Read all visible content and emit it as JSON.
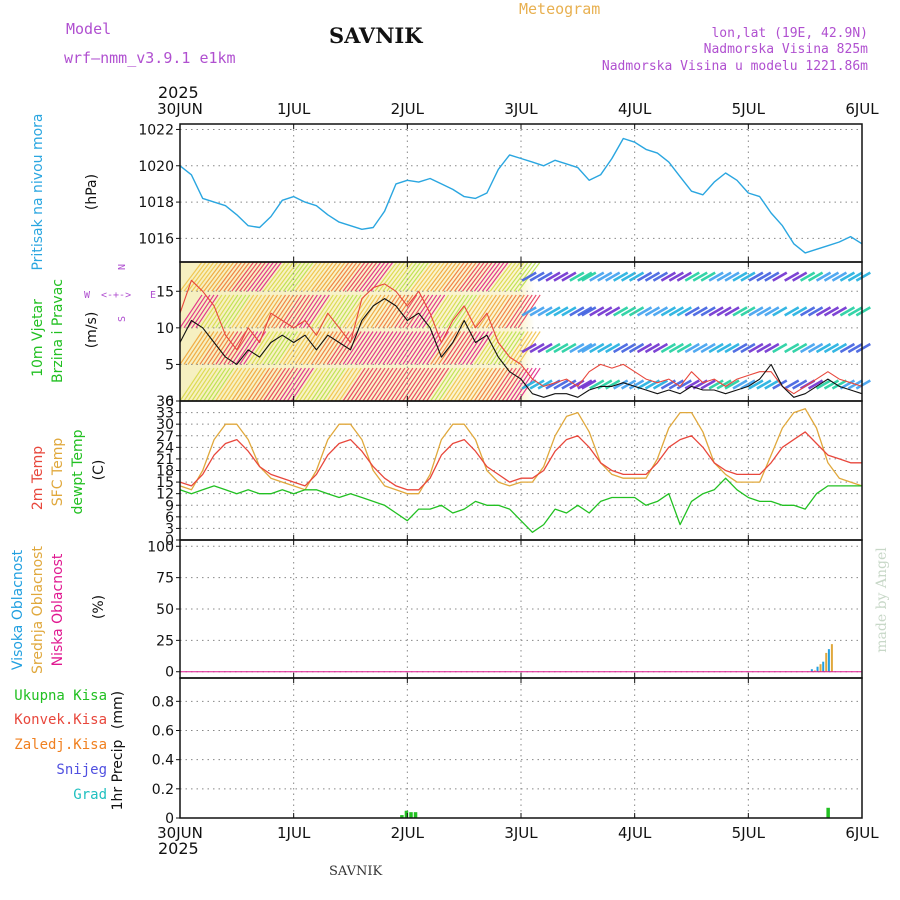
{
  "header": {
    "model_label": "Model",
    "model_name": "wrf—nmm_v3.9.1  e1km",
    "station": "SAVNIK",
    "title": "Meteogram",
    "lonlat": "lon,lat (19E, 42.9N)",
    "elevation": "Nadmorska Visina 825m",
    "model_elevation": "Nadmorska Visina u modelu 1221.86m"
  },
  "footer": {
    "station": "SAVNIK",
    "credit": "made by Angel"
  },
  "time_axis": {
    "year": "2025",
    "labels": [
      "30JUN",
      "1JUL",
      "2JUL",
      "3JUL",
      "4JUL",
      "5JUL",
      "6JUL"
    ]
  },
  "colors": {
    "pressure": "#2aa6e0",
    "temp2m": "#e8473c",
    "sfc": "#e0a83c",
    "dewpt": "#22c022",
    "vis_high": "#22a0e0",
    "vis_mid": "#e0a83c",
    "vis_low": "#e01890",
    "ukupna": "#22c022",
    "konvek": "#e8473c",
    "zaledj": "#f08020",
    "snijeg": "#5050e0",
    "grad": "#20c0c0",
    "model_purple": "#b050d0",
    "title_orange": "#e8b050"
  },
  "chart_data": [
    {
      "type": "line",
      "panel": "pressure",
      "ylabel_left": "Pritisak na nivou mora",
      "unit": "(hPa)",
      "yticks": [
        "1022",
        "1020",
        "1018",
        "1016"
      ],
      "ylim": [
        1014.7,
        1022.3
      ],
      "x_days": [
        0.0,
        0.1,
        0.2,
        0.3,
        0.4,
        0.5,
        0.6,
        0.7,
        0.8,
        0.9,
        1.0,
        1.1,
        1.2,
        1.3,
        1.4,
        1.5,
        1.6,
        1.7,
        1.8,
        1.9,
        2.0,
        2.1,
        2.2,
        2.3,
        2.4,
        2.5,
        2.6,
        2.7,
        2.8,
        2.9,
        3.0,
        3.1,
        3.2,
        3.3,
        3.4,
        3.5,
        3.6,
        3.7,
        3.8,
        3.9,
        4.0,
        4.1,
        4.2,
        4.3,
        4.4,
        4.5,
        4.6,
        4.7,
        4.8,
        4.9,
        5.0,
        5.1,
        5.2,
        5.3,
        5.4,
        5.5,
        5.6,
        5.7,
        5.8,
        5.9,
        6.0
      ],
      "series": [
        {
          "values": [
            1020.0,
            1019.5,
            1018.2,
            1018.0,
            1017.8,
            1017.3,
            1016.7,
            1016.6,
            1017.2,
            1018.1,
            1018.3,
            1018.0,
            1017.8,
            1017.3,
            1016.9,
            1016.7,
            1016.5,
            1016.6,
            1017.5,
            1019.0,
            1019.2,
            1019.1,
            1019.3,
            1019.0,
            1018.7,
            1018.3,
            1018.2,
            1018.5,
            1019.8,
            1020.6,
            1020.4,
            1020.2,
            1020.0,
            1020.3,
            1020.1,
            1019.9,
            1019.2,
            1019.5,
            1020.4,
            1021.5,
            1021.3,
            1020.9,
            1020.7,
            1020.2,
            1019.4,
            1018.6,
            1018.4,
            1019.1,
            1019.6,
            1019.2,
            1018.5,
            1018.3,
            1017.4,
            1016.7,
            1015.7,
            1015.2,
            1015.4,
            1015.6,
            1015.8,
            1016.1,
            1015.7
          ]
        }
      ]
    },
    {
      "type": "line",
      "panel": "wind",
      "ylabel_left": [
        "10m Vjetar",
        "Brzina i Pravac"
      ],
      "unit": "(m/s)",
      "compass": {
        "w": "W",
        "e": "E",
        "n": "N",
        "s": "S",
        "arrows": "<-+->"
      },
      "yticks": [
        "15",
        "10",
        "5",
        "0"
      ],
      "ylim": [
        0,
        19
      ],
      "x_days": [
        0.0,
        0.1,
        0.2,
        0.3,
        0.4,
        0.5,
        0.6,
        0.7,
        0.8,
        0.9,
        1.0,
        1.1,
        1.2,
        1.3,
        1.4,
        1.5,
        1.6,
        1.7,
        1.8,
        1.9,
        2.0,
        2.1,
        2.2,
        2.3,
        2.4,
        2.5,
        2.6,
        2.7,
        2.8,
        2.9,
        3.0,
        3.1,
        3.2,
        3.3,
        3.4,
        3.5,
        3.6,
        3.7,
        3.8,
        3.9,
        4.0,
        4.1,
        4.2,
        4.3,
        4.4,
        4.5,
        4.6,
        4.7,
        4.8,
        4.9,
        5.0,
        5.1,
        5.2,
        5.3,
        5.4,
        5.5,
        5.6,
        5.7,
        5.8,
        5.9,
        6.0
      ],
      "series": [
        {
          "name": "gust",
          "values": [
            12,
            16.5,
            15,
            13,
            9,
            7,
            10,
            8,
            12,
            11,
            10,
            11,
            9,
            12,
            10,
            8,
            14,
            15.5,
            16,
            15,
            13,
            15,
            12,
            8,
            11,
            13,
            10,
            12,
            8,
            6,
            5,
            3,
            2,
            2.5,
            3,
            2,
            4,
            5,
            4.5,
            5,
            4,
            3,
            2.5,
            3,
            2,
            4,
            2.5,
            3,
            2,
            3,
            3.5,
            4,
            4,
            2,
            1,
            2,
            3,
            4,
            3,
            2.5,
            2
          ]
        },
        {
          "name": "wind",
          "values": [
            8,
            11,
            10,
            8,
            6,
            5,
            7,
            6,
            8,
            9,
            8,
            9,
            7,
            9,
            8,
            7,
            11,
            13,
            14,
            13,
            11,
            12,
            10,
            6,
            8,
            11,
            8,
            9,
            6,
            4,
            3,
            1,
            0.5,
            1,
            1,
            0.5,
            1.5,
            2,
            2,
            2.5,
            2,
            1.5,
            1,
            1.5,
            1,
            2,
            1.5,
            1.5,
            1,
            1.5,
            2,
            3,
            5,
            2,
            0.5,
            1,
            2,
            3,
            2,
            1.5,
            1
          ]
        }
      ]
    },
    {
      "type": "line",
      "panel": "temperature",
      "ylabel_left": [
        "2m Temp",
        "SFC Temp",
        "dewpt Temp"
      ],
      "unit": "(C)",
      "yticks": [
        "36",
        "33",
        "30",
        "27",
        "24",
        "21",
        "18",
        "15",
        "12",
        "9",
        "6",
        "3",
        "0"
      ],
      "ylim": [
        0,
        36
      ],
      "x_days": [
        0.0,
        0.1,
        0.2,
        0.3,
        0.4,
        0.5,
        0.6,
        0.7,
        0.8,
        0.9,
        1.0,
        1.1,
        1.2,
        1.3,
        1.4,
        1.5,
        1.6,
        1.7,
        1.8,
        1.9,
        2.0,
        2.1,
        2.2,
        2.3,
        2.4,
        2.5,
        2.6,
        2.7,
        2.8,
        2.9,
        3.0,
        3.1,
        3.2,
        3.3,
        3.4,
        3.5,
        3.6,
        3.7,
        3.8,
        3.9,
        4.0,
        4.1,
        4.2,
        4.3,
        4.4,
        4.5,
        4.6,
        4.7,
        4.8,
        4.9,
        5.0,
        5.1,
        5.2,
        5.3,
        5.4,
        5.5,
        5.6,
        5.7,
        5.8,
        5.9,
        6.0
      ],
      "series": [
        {
          "name": "2m Temp",
          "values": [
            15,
            14,
            17,
            22,
            25,
            26,
            23,
            19,
            17,
            16,
            15,
            14,
            17,
            22,
            25,
            26,
            23,
            19,
            16,
            14,
            13,
            13,
            16,
            22,
            25,
            26,
            23,
            19,
            17,
            15,
            16,
            16,
            18,
            23,
            26,
            27,
            24,
            20,
            18,
            17,
            17,
            17,
            20,
            24,
            26,
            27,
            24,
            20,
            18,
            17,
            17,
            17,
            20,
            24,
            26,
            28,
            25,
            22,
            21,
            20,
            20
          ]
        },
        {
          "name": "SFC Temp",
          "values": [
            14,
            13,
            18,
            26,
            30,
            30,
            26,
            19,
            16,
            15,
            14,
            13,
            18,
            26,
            30,
            30,
            26,
            18,
            14,
            13,
            12,
            12,
            17,
            26,
            30,
            30,
            26,
            18,
            15,
            14,
            15,
            15,
            19,
            27,
            32,
            33,
            28,
            20,
            17,
            16,
            16,
            16,
            21,
            29,
            33,
            33,
            28,
            20,
            17,
            15,
            15,
            15,
            22,
            29,
            33,
            34,
            29,
            20,
            16,
            15,
            14
          ]
        },
        {
          "name": "dewpt Temp",
          "values": [
            13,
            12,
            13,
            14,
            13,
            12,
            13,
            12,
            12,
            13,
            12,
            13,
            13,
            12,
            11,
            12,
            11,
            10,
            9,
            7,
            5,
            8,
            8,
            9,
            7,
            8,
            10,
            9,
            9,
            8,
            5,
            2,
            4,
            8,
            7,
            9,
            7,
            10,
            11,
            11,
            11,
            9,
            10,
            12,
            4,
            10,
            12,
            13,
            16,
            13,
            11,
            10,
            10,
            9,
            9,
            8,
            12,
            14,
            14,
            14,
            14
          ]
        }
      ]
    },
    {
      "type": "bar",
      "panel": "cloud",
      "ylabel_left": [
        "Visoka Oblacnost",
        "Srednja Oblacnost",
        "Niska Oblacnost"
      ],
      "unit": "(%)",
      "yticks": [
        "100",
        "75",
        "50",
        "25",
        "0"
      ],
      "ylim": [
        -5,
        105
      ],
      "x_days": [
        5.55,
        5.6,
        5.65,
        5.7
      ],
      "series": [
        {
          "name": "Visoka Oblacnost",
          "values": [
            2,
            4,
            8,
            18
          ]
        },
        {
          "name": "Srednja Oblacnost",
          "values": [
            1,
            6,
            15,
            22
          ]
        },
        {
          "name": "Niska Oblacnost",
          "values": [
            0,
            0,
            0,
            0
          ]
        }
      ]
    },
    {
      "type": "bar",
      "panel": "precip",
      "ylabel_left": "1hr Precip",
      "unit": "(mm)",
      "legend": [
        "Ukupna  Kisa",
        "Konvek.Kisa",
        "Zaledj.Kisa",
        "Snijeg",
        "Grad"
      ],
      "yticks": [
        "0.8",
        "0.6",
        "0.4",
        "0.2",
        "0"
      ],
      "ylim": [
        0,
        0.96
      ],
      "x_days": [
        1.95,
        1.99,
        2.03,
        2.07,
        5.7
      ],
      "series": [
        {
          "name": "Ukupna  Kisa",
          "values": [
            0.02,
            0.05,
            0.04,
            0.04,
            0.07
          ]
        }
      ]
    }
  ]
}
